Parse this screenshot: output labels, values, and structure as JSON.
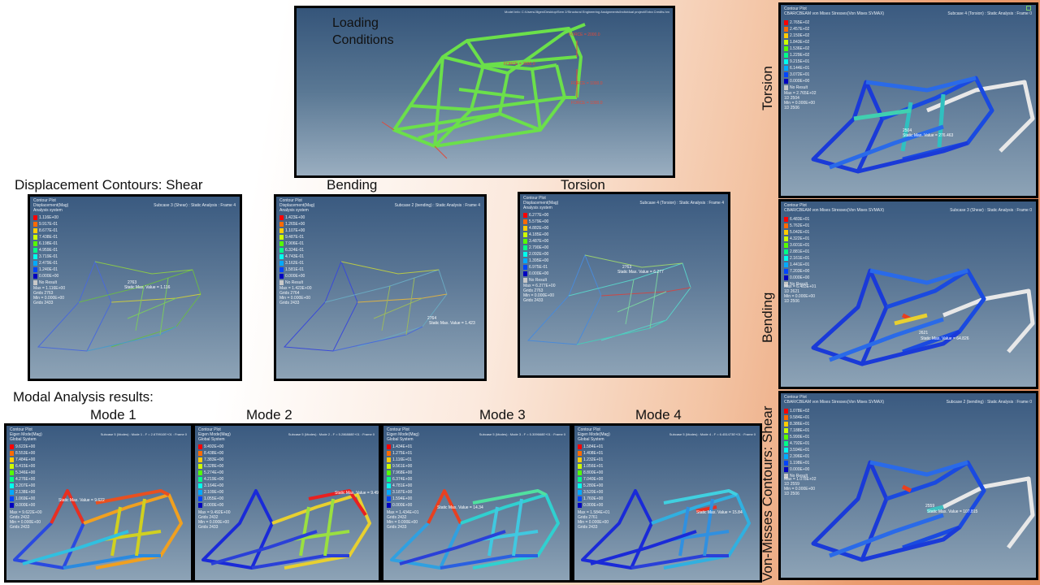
{
  "headings": {
    "displacement": "Displacement Contours: Shear",
    "bending": "Bending",
    "torsion": "Torsion",
    "modal": "Modal Analysis results:",
    "mode1": "Mode 1",
    "mode2": "Mode 2",
    "mode3": "Mode 3",
    "mode4": "Mode 4",
    "vm_torsion": "Torsion",
    "vm_bending": "Bending",
    "vm_shear": "Von-Misses Contours: Shear"
  },
  "loading": {
    "label": "Loading Conditions",
    "model_path": "Model Info: C:/Users/Jilgen/Desktop/Sem 2/Structural Engineering Assignments/Individual project/Extra Credits.hm",
    "forces": [
      "FORCE = 2000.0",
      "FORCE = 1000.0",
      "FORCE = 1000.0",
      "FORCE = 2000.0"
    ]
  },
  "displacement_panels": [
    {
      "title": "Contour Plot",
      "result": "Displacement(Mag)",
      "system": "Analysis system",
      "subcase": "Subcase 3 (Shear) : Static Analysis : Frame 4",
      "legend": [
        "1.116E+00",
        "9.917E-01",
        "8.677E-01",
        "7.438E-01",
        "6.198E-01",
        "4.959E-01",
        "3.719E-01",
        "2.479E-01",
        "1.240E-01",
        "0.000E+00"
      ],
      "no_result": "No Result",
      "stats": "Max = 1.116E+00\nGrids 2763\nMin = 0.000E+00\nGrids 2433",
      "tag": "Static Max. Value = 1.116",
      "node": "2763"
    },
    {
      "title": "Contour Plot",
      "result": "Displacement(Mag)",
      "system": "Analysis system",
      "subcase": "Subcase 2 (bending) : Static Analysis : Frame 4",
      "legend": [
        "1.423E+00",
        "1.265E+00",
        "1.107E+00",
        "9.487E-01",
        "7.906E-01",
        "6.324E-01",
        "4.743E-01",
        "3.162E-01",
        "1.581E-01",
        "0.000E+00"
      ],
      "no_result": "No Result",
      "stats": "Max = 1.423E+00\nGrids 2764\nMin = 0.000E+00\nGrids 2433",
      "tag": "Static Max. Value = 1.423",
      "node": "2764"
    },
    {
      "title": "Contour Plot",
      "result": "Displacement(Mag)",
      "system": "Analysis system",
      "subcase": "Subcase 4 (Torsion) : Static Analysis : Frame 4",
      "legend": [
        "6.277E+00",
        "5.579E+00",
        "4.882E+00",
        "4.185E+00",
        "3.487E+00",
        "2.790E+00",
        "2.092E+00",
        "1.395E+00",
        "6.975E-01",
        "0.000E+00"
      ],
      "no_result": "No Result",
      "stats": "Max = 6.277E+00\nGrids 2763\nMin = 0.000E+00\nGrids 2433",
      "tag": "Static Max. Value = 6.277",
      "node": "2763"
    }
  ],
  "mode_panels": [
    {
      "title": "Contour Plot",
      "result": "Eigen Mode(Mag)",
      "system": "Global System",
      "subcase": "Subcase 5 (Modes) : Mode 1 - F = 2.679910E+01 : Frame 0",
      "legend": [
        "9.622E+00",
        "8.553E+00",
        "7.484E+00",
        "6.415E+00",
        "5.346E+00",
        "4.276E+00",
        "3.207E+00",
        "2.138E+00",
        "1.069E+00",
        "0.000E+00"
      ],
      "stats": "Max = 9.622E+00\nGrids 2432\nMin = 0.000E+00\nGrids 2433",
      "tag": "Static Max. Value = 9.622"
    },
    {
      "title": "Contour Plot",
      "result": "Eigen Mode(Mag)",
      "system": "Global System",
      "subcase": "Subcase 5 (Modes) : Mode 2 - F = 5.286888E+01 : Frame 0",
      "legend": [
        "9.492E+00",
        "8.438E+00",
        "7.383E+00",
        "6.328E+00",
        "5.274E+00",
        "4.219E+00",
        "3.164E+00",
        "2.109E+00",
        "1.055E+00",
        "0.000E+00"
      ],
      "stats": "Max = 9.492E+00\nGrids 2432\nMin = 0.000E+00\nGrids 2433",
      "tag": "Static Max. Value = 9.492"
    },
    {
      "title": "Contour Plot",
      "result": "Eigen Mode(Mag)",
      "system": "Global System",
      "subcase": "Subcase 5 (Modes) : Mode 3 - F = 5.309668E+01 : Frame 0",
      "legend": [
        "1.434E+01",
        "1.275E+01",
        "1.116E+01",
        "9.561E+00",
        "7.968E+00",
        "6.374E+00",
        "4.781E+00",
        "3.187E+00",
        "1.594E+00",
        "0.000E+00"
      ],
      "stats": "Max = 1.434E+01\nGrids 2432\nMin = 0.000E+00\nGrids 2433",
      "tag": "Static Max. Value = 14.34"
    },
    {
      "title": "Contour Plot",
      "result": "Eigen Mode(Mag)",
      "system": "Global System",
      "subcase": "Subcase 5 (Modes) : Mode 4 - F = 6.451473E+01 : Frame 0",
      "legend": [
        "1.584E+01",
        "1.408E+01",
        "1.232E+01",
        "1.056E+01",
        "8.800E+00",
        "7.040E+00",
        "5.280E+00",
        "3.520E+00",
        "1.760E+00",
        "0.000E+00"
      ],
      "stats": "Max = 1.584E+01\nGrids 2761\nMin = 0.000E+00\nGrids 2433",
      "tag": "Static Max. Value = 15.84"
    }
  ],
  "vm_panels": [
    {
      "title": "Contour Plot",
      "result": "CBAR/CBEAM von Mises Stresses(Von Mises SVMAX)",
      "subcase": "Subcase 4 (Torsion) : Static Analysis : Frame 0",
      "legend": [
        "2.765E+02",
        "2.457E+02",
        "2.150E+02",
        "1.843E+02",
        "1.536E+02",
        "1.229E+02",
        "9.215E+01",
        "6.144E+01",
        "3.072E+01",
        "0.000E+00"
      ],
      "no_result": "No Result",
      "stats": "Max = 2.765E+02\n1D 2504\nMin = 0.000E+00\n1D 2506",
      "tag": "Static Max. Value = 276.463",
      "node": "2504"
    },
    {
      "title": "Contour Plot",
      "result": "CBAR/CBEAM von Mises Stresses(Von Mises SVMAX)",
      "subcase": "Subcase 3 (Shear) : Static Analysis : Frame 0",
      "legend": [
        "6.483E+01",
        "5.762E+01",
        "5.042E+01",
        "4.322E+01",
        "3.601E+01",
        "2.881E+01",
        "2.161E+01",
        "1.441E+01",
        "7.203E+00",
        "0.000E+00"
      ],
      "no_result": "No Result",
      "stats": "Max = 6.483E+01\n1D 2621\nMin = 0.000E+00\n1D 2506",
      "tag": "Static Max. Value = 64.826",
      "node": "2621"
    },
    {
      "title": "Contour Plot",
      "result": "CBAR/CBEAM von Mises Stresses(Von Mises SVMAX)",
      "subcase": "Subcase 2 (bending) : Static Analysis : Frame 0",
      "legend": [
        "1.078E+02",
        "9.584E+01",
        "8.386E+01",
        "7.188E+01",
        "5.990E+01",
        "4.792E+01",
        "3.594E+01",
        "2.396E+01",
        "1.198E+01",
        "0.000E+00"
      ],
      "no_result": "No Result",
      "stats": "Max = 1.078E+02\n1D 2559\nMin = 0.000E+00\n1D 2506",
      "tag": "Static Max. Value = 107.815",
      "node": "2559"
    }
  ],
  "legend_colors": [
    "#ff0000",
    "#ff6a00",
    "#ffcc00",
    "#ccff00",
    "#55ff00",
    "#00ff88",
    "#00ffee",
    "#00aaff",
    "#0044ff",
    "#0000c0"
  ]
}
